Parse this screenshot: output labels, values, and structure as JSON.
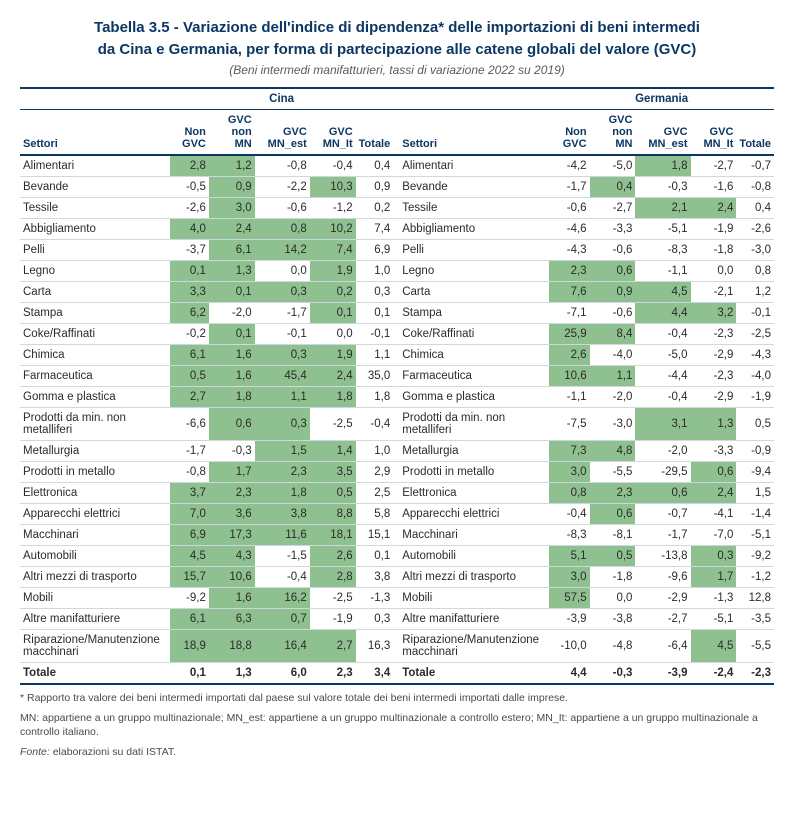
{
  "title_l1": "Tabella 3.5 - Variazione dell'indice di dipendenza* delle importazioni di beni intermedi",
  "title_l2": "da Cina e Germania, per forma di partecipazione alle catene globali del valore (GVC)",
  "subtitle": "(Beni intermedi manifatturieri, tassi di variazione 2022 su 2019)",
  "groupL": "Cina",
  "groupR": "Germania",
  "col_sector": "Settori",
  "cols": [
    "Non GVC",
    "GVC non MN",
    "GVC MN_est",
    "GVC MN_It",
    "Totale"
  ],
  "highlight_color": "#8fc08f",
  "border_color": "#0b3764",
  "sectors": [
    "Alimentari",
    "Bevande",
    "Tessile",
    "Abbigliamento",
    "Pelli",
    "Legno",
    "Carta",
    "Stampa",
    "Coke/Raffinati",
    "Chimica",
    "Farmaceutica",
    "Gomma e plastica",
    "Prodotti da min. non metalliferi",
    "Metallurgia",
    "Prodotti in metallo",
    "Elettronica",
    "Apparecchi elettrici",
    "Macchinari",
    "Automobili",
    "Altri mezzi di trasporto",
    "Mobili",
    "Altre manifatturiere",
    "Riparazione/Manutenzione macchinari"
  ],
  "cina": [
    [
      "2,8",
      "1,2",
      "-0,8",
      "-0,4",
      "0,4"
    ],
    [
      "-0,5",
      "0,9",
      "-2,2",
      "10,3",
      "0,9"
    ],
    [
      "-2,6",
      "3,0",
      "-0,6",
      "-1,2",
      "0,2"
    ],
    [
      "4,0",
      "2,4",
      "0,8",
      "10,2",
      "7,4"
    ],
    [
      "-3,7",
      "6,1",
      "14,2",
      "7,4",
      "6,9"
    ],
    [
      "0,1",
      "1,3",
      "0,0",
      "1,9",
      "1,0"
    ],
    [
      "3,3",
      "0,1",
      "0,3",
      "0,2",
      "0,3"
    ],
    [
      "6,2",
      "-2,0",
      "-1,7",
      "0,1",
      "0,1"
    ],
    [
      "-0,2",
      "0,1",
      "-0,1",
      "0,0",
      "-0,1"
    ],
    [
      "6,1",
      "1,6",
      "0,3",
      "1,9",
      "1,1"
    ],
    [
      "0,5",
      "1,6",
      "45,4",
      "2,4",
      "35,0"
    ],
    [
      "2,7",
      "1,8",
      "1,1",
      "1,8",
      "1,8"
    ],
    [
      "-6,6",
      "0,6",
      "0,3",
      "-2,5",
      "-0,4"
    ],
    [
      "-1,7",
      "-0,3",
      "1,5",
      "1,4",
      "1,0"
    ],
    [
      "-0,8",
      "1,7",
      "2,3",
      "3,5",
      "2,9"
    ],
    [
      "3,7",
      "2,3",
      "1,8",
      "0,5",
      "2,5"
    ],
    [
      "7,0",
      "3,6",
      "3,8",
      "8,8",
      "5,8"
    ],
    [
      "6,9",
      "17,3",
      "11,6",
      "18,1",
      "15,1"
    ],
    [
      "4,5",
      "4,3",
      "-1,5",
      "2,6",
      "0,1"
    ],
    [
      "15,7",
      "10,6",
      "-0,4",
      "2,8",
      "3,8"
    ],
    [
      "-9,2",
      "1,6",
      "16,2",
      "-2,5",
      "-1,3"
    ],
    [
      "6,1",
      "6,3",
      "0,7",
      "-1,9",
      "0,3"
    ],
    [
      "18,9",
      "18,8",
      "16,4",
      "2,7",
      "16,3"
    ]
  ],
  "cina_hl": [
    [
      1,
      1,
      0,
      0,
      0
    ],
    [
      0,
      1,
      0,
      1,
      0
    ],
    [
      0,
      1,
      0,
      0,
      0
    ],
    [
      1,
      1,
      1,
      1,
      0
    ],
    [
      0,
      1,
      1,
      1,
      0
    ],
    [
      1,
      1,
      0,
      1,
      0
    ],
    [
      1,
      1,
      1,
      1,
      0
    ],
    [
      1,
      0,
      0,
      1,
      0
    ],
    [
      0,
      1,
      0,
      0,
      0
    ],
    [
      1,
      1,
      1,
      1,
      0
    ],
    [
      1,
      1,
      1,
      1,
      0
    ],
    [
      1,
      1,
      1,
      1,
      0
    ],
    [
      0,
      1,
      1,
      0,
      0
    ],
    [
      0,
      0,
      1,
      1,
      0
    ],
    [
      0,
      1,
      1,
      1,
      0
    ],
    [
      1,
      1,
      1,
      1,
      0
    ],
    [
      1,
      1,
      1,
      1,
      0
    ],
    [
      1,
      1,
      1,
      1,
      0
    ],
    [
      1,
      1,
      0,
      1,
      0
    ],
    [
      1,
      1,
      0,
      1,
      0
    ],
    [
      0,
      1,
      1,
      0,
      0
    ],
    [
      1,
      1,
      1,
      0,
      0
    ],
    [
      1,
      1,
      1,
      1,
      0
    ]
  ],
  "germania": [
    [
      "-4,2",
      "-5,0",
      "1,8",
      "-2,7",
      "-0,7"
    ],
    [
      "-1,7",
      "0,4",
      "-0,3",
      "-1,6",
      "-0,8"
    ],
    [
      "-0,6",
      "-2,7",
      "2,1",
      "2,4",
      "0,4"
    ],
    [
      "-4,6",
      "-3,3",
      "-5,1",
      "-1,9",
      "-2,6"
    ],
    [
      "-4,3",
      "-0,6",
      "-8,3",
      "-1,8",
      "-3,0"
    ],
    [
      "2,3",
      "0,6",
      "-1,1",
      "0,0",
      "0,8"
    ],
    [
      "7,6",
      "0,9",
      "4,5",
      "-2,1",
      "1,2"
    ],
    [
      "-7,1",
      "-0,6",
      "4,4",
      "3,2",
      "-0,1"
    ],
    [
      "25,9",
      "8,4",
      "-0,4",
      "-2,3",
      "-2,5"
    ],
    [
      "2,6",
      "-4,0",
      "-5,0",
      "-2,9",
      "-4,3"
    ],
    [
      "10,6",
      "1,1",
      "-4,4",
      "-2,3",
      "-4,0"
    ],
    [
      "-1,1",
      "-2,0",
      "-0,4",
      "-2,9",
      "-1,9"
    ],
    [
      "-7,5",
      "-3,0",
      "3,1",
      "1,3",
      "0,5"
    ],
    [
      "7,3",
      "4,8",
      "-2,0",
      "-3,3",
      "-0,9"
    ],
    [
      "3,0",
      "-5,5",
      "-29,5",
      "0,6",
      "-9,4"
    ],
    [
      "0,8",
      "2,3",
      "0,6",
      "2,4",
      "1,5"
    ],
    [
      "-0,4",
      "0,6",
      "-0,7",
      "-4,1",
      "-1,4"
    ],
    [
      "-8,3",
      "-8,1",
      "-1,7",
      "-7,0",
      "-5,1"
    ],
    [
      "5,1",
      "0,5",
      "-13,8",
      "0,3",
      "-9,2"
    ],
    [
      "3,0",
      "-1,8",
      "-9,6",
      "1,7",
      "-1,2"
    ],
    [
      "57,5",
      "0,0",
      "-2,9",
      "-1,3",
      "12,8"
    ],
    [
      "-3,9",
      "-3,8",
      "-2,7",
      "-5,1",
      "-3,5"
    ],
    [
      "-10,0",
      "-4,8",
      "-6,4",
      "4,5",
      "-5,5"
    ]
  ],
  "germania_hl": [
    [
      0,
      0,
      1,
      0,
      0
    ],
    [
      0,
      1,
      0,
      0,
      0
    ],
    [
      0,
      0,
      1,
      1,
      0
    ],
    [
      0,
      0,
      0,
      0,
      0
    ],
    [
      0,
      0,
      0,
      0,
      0
    ],
    [
      1,
      1,
      0,
      0,
      0
    ],
    [
      1,
      1,
      1,
      0,
      0
    ],
    [
      0,
      0,
      1,
      1,
      0
    ],
    [
      1,
      1,
      0,
      0,
      0
    ],
    [
      1,
      0,
      0,
      0,
      0
    ],
    [
      1,
      1,
      0,
      0,
      0
    ],
    [
      0,
      0,
      0,
      0,
      0
    ],
    [
      0,
      0,
      1,
      1,
      0
    ],
    [
      1,
      1,
      0,
      0,
      0
    ],
    [
      1,
      0,
      0,
      1,
      0
    ],
    [
      1,
      1,
      1,
      1,
      0
    ],
    [
      0,
      1,
      0,
      0,
      0
    ],
    [
      0,
      0,
      0,
      0,
      0
    ],
    [
      1,
      1,
      0,
      1,
      0
    ],
    [
      1,
      0,
      0,
      1,
      0
    ],
    [
      1,
      0,
      0,
      0,
      0
    ],
    [
      0,
      0,
      0,
      0,
      0
    ],
    [
      0,
      0,
      0,
      1,
      0
    ]
  ],
  "tot_label": "Totale",
  "cina_tot": [
    "0,1",
    "1,3",
    "6,0",
    "2,3",
    "3,4"
  ],
  "germ_tot": [
    "4,4",
    "-0,3",
    "-3,9",
    "-2,4",
    "-2,3"
  ],
  "foot1": "* Rapporto tra valore dei beni intermedi importati dal paese sul valore totale dei beni intermedi importati dalle imprese.",
  "foot2": "MN: appartiene a un gruppo multinazionale; MN_est: appartiene a un gruppo multinazionale a controllo estero; MN_It: appartiene a un gruppo multinazionale a controllo italiano.",
  "foot3_label": "Fonte:",
  "foot3_val": " elaborazioni su dati ISTAT."
}
